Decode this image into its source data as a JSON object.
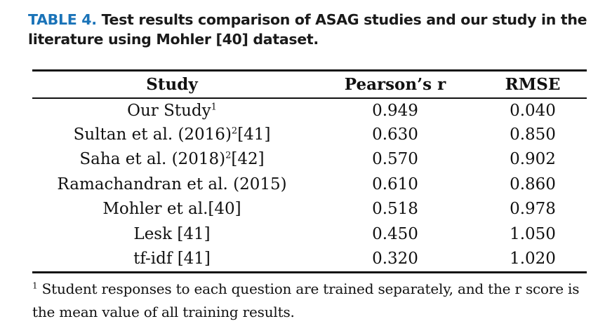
{
  "caption": {
    "label": "TABLE 4.",
    "text": "Test results comparison of ASAG studies and our study in the literature using Mohler [40] dataset."
  },
  "table": {
    "headers": [
      "Study",
      "Pearson’s r",
      "RMSE"
    ],
    "rows": [
      {
        "study": "Our Study",
        "sup": "1",
        "ref": "",
        "r": "0.949",
        "rmse": "0.040"
      },
      {
        "study": "Sultan et al. (2016)",
        "sup": "2",
        "ref": "[41]",
        "r": "0.630",
        "rmse": "0.850"
      },
      {
        "study": "Saha et al. (2018)",
        "sup": "2",
        "ref": "[42]",
        "r": "0.570",
        "rmse": "0.902"
      },
      {
        "study": "Ramachandran et al. (2015)",
        "sup": "",
        "ref": "",
        "r": "0.610",
        "rmse": "0.860"
      },
      {
        "study": "Mohler et al.[40]",
        "sup": "",
        "ref": "",
        "r": "0.518",
        "rmse": "0.978"
      },
      {
        "study": "Lesk [41]",
        "sup": "",
        "ref": "",
        "r": "0.450",
        "rmse": "1.050"
      },
      {
        "study": "tf-idf [41]",
        "sup": "",
        "ref": "",
        "r": "0.320",
        "rmse": "1.020"
      }
    ]
  },
  "footnote": {
    "marker": "1",
    "text": "Student responses to each question are trained separately, and the r score is the mean value of all training results."
  }
}
